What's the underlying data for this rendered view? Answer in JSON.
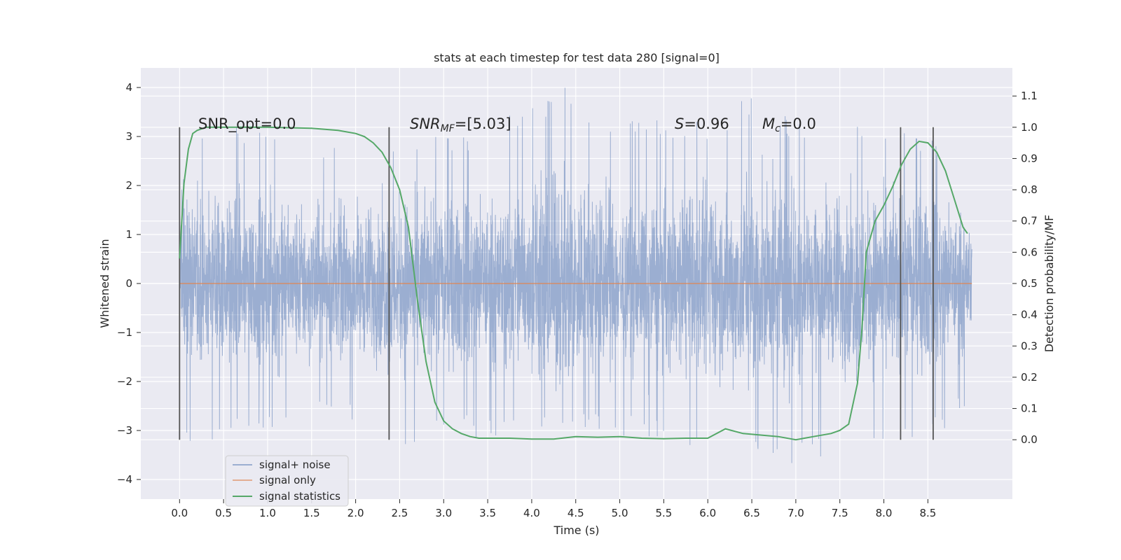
{
  "chart_data": {
    "type": "line",
    "title": "stats at each timestep for test data 280 [signal=0]",
    "xlabel": "Time (s)",
    "ylabel": "Whitened strain",
    "y2label": "Detection probability/MF",
    "xlim": [
      -0.44,
      9.46
    ],
    "ylim": [
      -4.4,
      4.4
    ],
    "y2lim": [
      -0.19,
      1.19
    ],
    "x_ticks": [
      "0.0",
      "0.5",
      "1.0",
      "1.5",
      "2.0",
      "2.5",
      "3.0",
      "3.5",
      "4.0",
      "4.5",
      "5.0",
      "5.5",
      "6.0",
      "6.5",
      "7.0",
      "7.5",
      "8.0",
      "8.5"
    ],
    "y_ticks": [
      "4",
      "3",
      "2",
      "1",
      "0",
      "−1",
      "−2",
      "−3",
      "−4"
    ],
    "y2_ticks": [
      "1.1",
      "1.0",
      "0.9",
      "0.8",
      "0.7",
      "0.6",
      "0.5",
      "0.4",
      "0.3",
      "0.2",
      "0.1",
      "0.0"
    ],
    "grid": true,
    "legend_position": "lower-left",
    "annotations": {
      "snr_opt": "SNR_opt=0.0",
      "snr_mf_main": "SNR",
      "snr_mf_sub": "MF",
      "snr_mf_val": "=[5.03]",
      "s_main": "S",
      "s_val": "=0.96",
      "mc_main": "M",
      "mc_sub": "c",
      "mc_val": "=0.0"
    },
    "colors": {
      "background": "#eaeaf2",
      "grid": "#ffffff",
      "noise": "#4c72b0",
      "signal": "#dd8452",
      "stat": "#55a868",
      "vline": "#555555"
    },
    "vertical_lines_x": [
      0.0,
      2.38,
      8.19,
      8.56
    ],
    "series": [
      {
        "name": "signal+ noise",
        "envelope_x": [
          0.0,
          0.5,
          1.0,
          1.5,
          2.0,
          2.5,
          3.0,
          3.5,
          4.0,
          4.5,
          5.0,
          5.5,
          6.0,
          6.5,
          7.0,
          7.5,
          8.0,
          8.5,
          9.0
        ],
        "envelope_max": [
          2.9,
          3.3,
          3.2,
          3.0,
          3.0,
          3.1,
          3.2,
          3.0,
          4.0,
          4.0,
          3.3,
          3.4,
          3.3,
          3.9,
          3.4,
          3.5,
          3.4,
          3.1,
          2.5
        ],
        "envelope_min": [
          -3.5,
          -3.1,
          -3.1,
          -2.8,
          -2.8,
          -3.4,
          -3.0,
          -3.2,
          -3.0,
          -3.1,
          -3.1,
          -3.2,
          -3.7,
          -3.4,
          -3.9,
          -3.3,
          -3.2,
          -3.3,
          -2.4
        ]
      },
      {
        "name": "signal only",
        "x": [
          0.0,
          9.0
        ],
        "y": [
          0.0,
          0.0
        ]
      },
      {
        "name": "signal statistics",
        "x": [
          0.0,
          0.05,
          0.1,
          0.15,
          0.2,
          0.3,
          0.5,
          1.0,
          1.5,
          1.8,
          2.0,
          2.1,
          2.2,
          2.3,
          2.4,
          2.5,
          2.6,
          2.7,
          2.8,
          2.9,
          3.0,
          3.1,
          3.2,
          3.3,
          3.4,
          3.5,
          3.75,
          4.0,
          4.25,
          4.5,
          4.75,
          5.0,
          5.25,
          5.5,
          5.75,
          6.0,
          6.2,
          6.4,
          6.6,
          6.8,
          7.0,
          7.2,
          7.4,
          7.5,
          7.6,
          7.7,
          7.75,
          7.8,
          7.9,
          8.0,
          8.1,
          8.2,
          8.3,
          8.4,
          8.5,
          8.6,
          8.7,
          8.8,
          8.9,
          8.95
        ],
        "y": [
          0.58,
          0.82,
          0.93,
          0.98,
          0.99,
          1.0,
          1.0,
          1.0,
          0.997,
          0.99,
          0.98,
          0.97,
          0.95,
          0.92,
          0.87,
          0.8,
          0.68,
          0.45,
          0.25,
          0.12,
          0.06,
          0.035,
          0.02,
          0.01,
          0.005,
          0.005,
          0.005,
          0.002,
          0.002,
          0.01,
          0.008,
          0.01,
          0.005,
          0.003,
          0.005,
          0.005,
          0.035,
          0.02,
          0.015,
          0.01,
          0.0,
          0.01,
          0.02,
          0.03,
          0.05,
          0.18,
          0.35,
          0.6,
          0.7,
          0.75,
          0.81,
          0.88,
          0.93,
          0.955,
          0.95,
          0.92,
          0.86,
          0.77,
          0.68,
          0.66
        ]
      }
    ]
  }
}
